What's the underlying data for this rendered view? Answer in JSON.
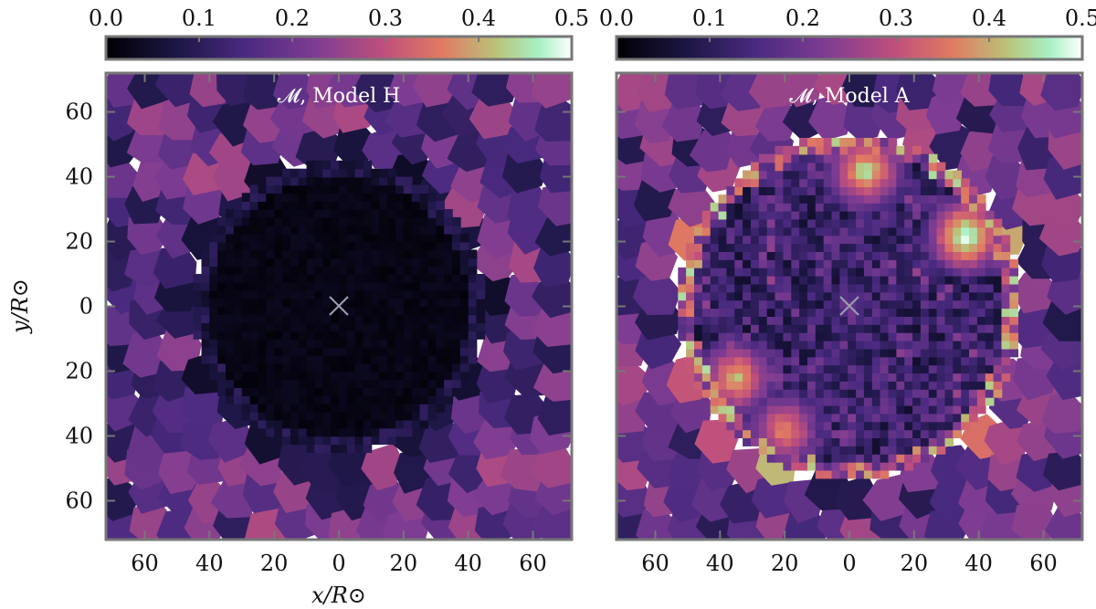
{
  "chart_data": [
    {
      "type": "heatmap",
      "title": "𝓜, Model H",
      "colorbar": {
        "range": [
          0.0,
          0.5
        ],
        "ticks": [
          "0.0",
          "0.1",
          "0.2",
          "0.3",
          "0.4",
          "0.5"
        ],
        "colormap": [
          "#000004",
          "#2a1e5c",
          "#5e2f8a",
          "#9b3f8b",
          "#d4587a",
          "#f0a06a",
          "#bfe0a8",
          "#ffffff"
        ]
      },
      "xlim": [
        -72,
        72
      ],
      "ylim": [
        -72,
        72
      ],
      "xticks": [
        "60",
        "40",
        "20",
        "0",
        "20",
        "40",
        "60"
      ],
      "yticks": [
        "60",
        "40",
        "20",
        "0",
        "20",
        "40",
        "60"
      ],
      "xlabel": "x/R⊙",
      "ylabel": "y/R⊙",
      "center_marker": "×",
      "field": {
        "inner_radius": 40,
        "inner_value": 0.02,
        "ring_value": 0.08,
        "outer_value": 0.18
      }
    },
    {
      "type": "heatmap",
      "title": "𝓜, Model A",
      "colorbar": {
        "range": [
          0.0,
          0.5
        ],
        "ticks": [
          "0.0",
          "0.1",
          "0.2",
          "0.3",
          "0.4",
          "0.5"
        ]
      },
      "xlim": [
        -72,
        72
      ],
      "ylim": [
        -72,
        72
      ],
      "xticks": [
        "60",
        "40",
        "20",
        "0",
        "20",
        "40",
        "60"
      ],
      "yticks": [],
      "xlabel": "",
      "ylabel": "",
      "center_marker": "×",
      "field": {
        "inner_radius": 48,
        "inner_value": 0.12,
        "ring_value": 0.32,
        "outer_value": 0.18,
        "hotspots": [
          [
            5,
            42,
            0.45
          ],
          [
            36,
            22,
            0.5
          ],
          [
            -35,
            -22,
            0.42
          ],
          [
            -20,
            -38,
            0.38
          ]
        ]
      }
    }
  ]
}
